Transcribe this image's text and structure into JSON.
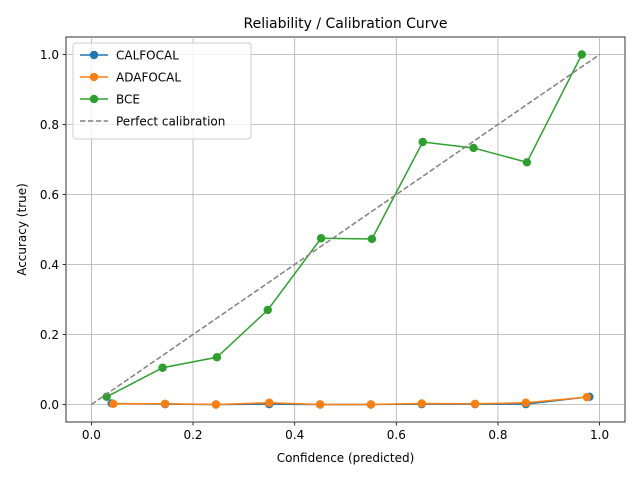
{
  "chart_data": {
    "type": "line",
    "title": "Reliability / Calibration Curve",
    "xlabel": "Confidence (predicted)",
    "ylabel": "Accuracy (true)",
    "xlim": [
      -0.05,
      1.05
    ],
    "ylim": [
      -0.05,
      1.05
    ],
    "xticks": [
      0.0,
      0.2,
      0.4,
      0.6,
      0.8,
      1.0
    ],
    "xtick_labels": [
      "0.0",
      "0.2",
      "0.4",
      "0.6",
      "0.8",
      "1.0"
    ],
    "yticks": [
      0.0,
      0.2,
      0.4,
      0.6,
      0.8,
      1.0
    ],
    "ytick_labels": [
      "0.0",
      "0.2",
      "0.4",
      "0.6",
      "0.8",
      "1.0"
    ],
    "grid": true,
    "legend_position": "top-left",
    "series": [
      {
        "name": "CALFOCAL",
        "color": "#1f77b4",
        "marker": "circle",
        "x": [
          0.04,
          0.145,
          0.245,
          0.35,
          0.45,
          0.55,
          0.65,
          0.755,
          0.855,
          0.98
        ],
        "y": [
          0.003,
          0.001,
          0.0,
          0.001,
          0.0,
          0.0,
          0.001,
          0.001,
          0.001,
          0.022
        ]
      },
      {
        "name": "ADAFOCAL",
        "color": "#ff7f0e",
        "marker": "circle",
        "x": [
          0.043,
          0.145,
          0.245,
          0.35,
          0.45,
          0.55,
          0.65,
          0.755,
          0.855,
          0.975
        ],
        "y": [
          0.002,
          0.002,
          0.0,
          0.005,
          0.0,
          0.0,
          0.003,
          0.002,
          0.005,
          0.021
        ]
      },
      {
        "name": "BCE",
        "color": "#2ca02c",
        "marker": "circle",
        "x": [
          0.03,
          0.14,
          0.247,
          0.347,
          0.452,
          0.552,
          0.652,
          0.752,
          0.857,
          0.965
        ],
        "y": [
          0.022,
          0.105,
          0.135,
          0.27,
          0.475,
          0.473,
          0.75,
          0.733,
          0.692,
          1.0
        ]
      },
      {
        "name": "Perfect calibration",
        "color": "#808080",
        "dashed": true,
        "x": [
          0.0,
          1.0
        ],
        "y": [
          0.0,
          1.0
        ]
      }
    ]
  }
}
